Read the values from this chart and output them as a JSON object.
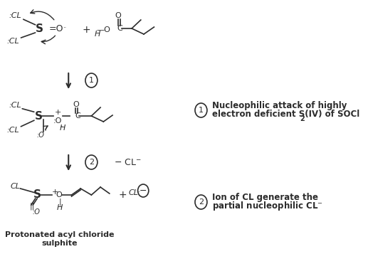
{
  "bg_color": "#ffffff",
  "text_color": "#2c2c2c",
  "title": "",
  "annotation1_title": "Nucleophilic attack of highly",
  "annotation1_line2": "electron deficient S(IV) of SOCl",
  "annotation1_sub": "2",
  "annotation2_title": "Ion of CL generate the",
  "annotation2_line2": "partial nucleophilic CL",
  "annotation2_minus": "−",
  "label_protonated": "Protonated acyl chloride",
  "label_sulphite": "sulphite",
  "step1_label": "1",
  "step2_label": "2",
  "minus_cl": "− CL⁻",
  "font_size_main": 8,
  "font_size_annotation": 8.5
}
